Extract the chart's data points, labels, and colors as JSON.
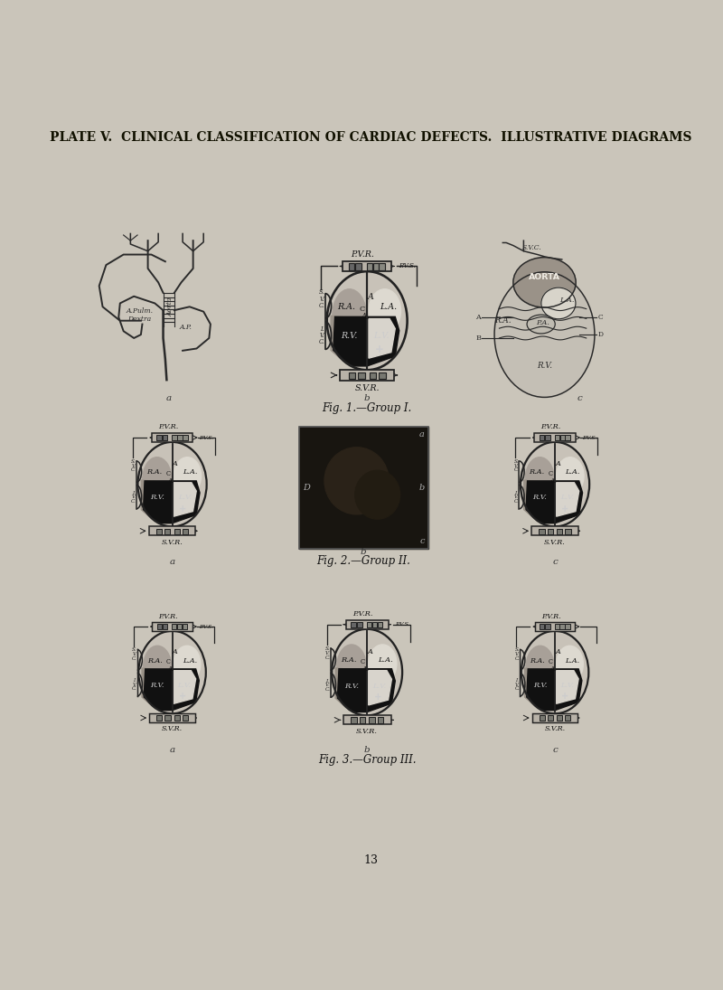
{
  "title": "PLATE V.  CLINICAL CLASSIFICATION OF CARDIAC DEFECTS.  ILLUSTRATIVE DIAGRAMS",
  "background_color": "#cac5ba",
  "page_color": "#cac5ba",
  "fig1_caption": "Fig. 1.—Group I.",
  "fig2_caption": "Fig. 2.—Group II.",
  "fig3_caption": "Fig. 3.—Group III.",
  "page_number": "13",
  "title_fontsize": 10,
  "caption_fontsize": 8.5,
  "small_label_fontsize": 7.5,
  "page_num_fontsize": 9
}
